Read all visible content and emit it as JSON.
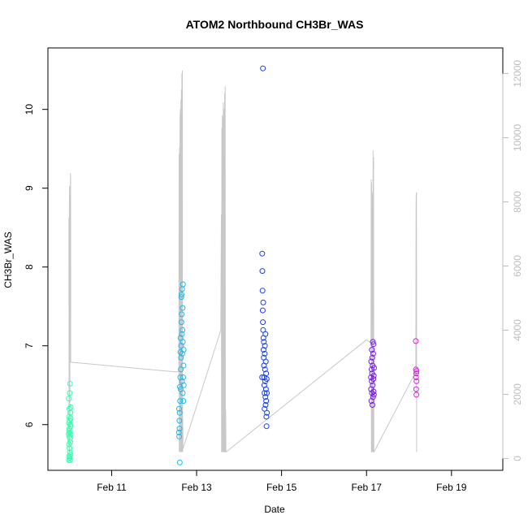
{
  "chart_data": {
    "type": "scatter",
    "title": "ATOM2 Northbound CH3Br_WAS",
    "xlabel": "Date",
    "ylabel": "CH3Br_WAS",
    "xlim": [
      "2016-02-09T12:00",
      "2016-02-20T05:00"
    ],
    "ylim": [
      5.42,
      10.78
    ],
    "y2lim": [
      -370,
      12800
    ],
    "x_ticks": [
      {
        "t": "2016-02-11T00:00",
        "label": "Feb 11"
      },
      {
        "t": "2016-02-13T00:00",
        "label": "Feb 13"
      },
      {
        "t": "2016-02-15T00:00",
        "label": "Feb 15"
      },
      {
        "t": "2016-02-17T00:00",
        "label": "Feb 17"
      },
      {
        "t": "2016-02-19T00:00",
        "label": "Feb 19"
      }
    ],
    "y_ticks": [
      6,
      7,
      8,
      9,
      10
    ],
    "y2_ticks": [
      0,
      2000,
      4000,
      6000,
      8000,
      10000,
      12000
    ],
    "secondary_line": {
      "color": "#c8c8c8",
      "points": [
        [
          "2016-02-09T23:50",
          7500
        ],
        [
          "2016-02-09T23:58",
          200
        ],
        [
          "2016-02-10T00:05",
          7500
        ],
        [
          "2016-02-10T00:12",
          8500
        ],
        [
          "2016-02-10T00:20",
          200
        ],
        [
          "2016-02-10T00:28",
          8000
        ],
        [
          "2016-02-10T00:34",
          8200
        ],
        [
          "2016-02-10T00:40",
          7000
        ],
        [
          "2016-02-10T00:46",
          8900
        ],
        [
          "2016-02-10T00:52",
          8700
        ],
        [
          "2016-02-10T00:55",
          3000
        ],
        [
          "2016-02-12T12:00",
          2700
        ],
        [
          "2016-02-12T14:00",
          2700
        ],
        [
          "2016-02-12T14:06",
          9500
        ],
        [
          "2016-02-12T14:12",
          200
        ],
        [
          "2016-02-12T14:20",
          9700
        ],
        [
          "2016-02-12T14:28",
          200
        ],
        [
          "2016-02-12T14:36",
          10600
        ],
        [
          "2016-02-12T14:44",
          10700
        ],
        [
          "2016-02-12T14:52",
          10900
        ],
        [
          "2016-02-12T15:00",
          200
        ],
        [
          "2016-02-12T15:08",
          11200
        ],
        [
          "2016-02-12T15:16",
          200
        ],
        [
          "2016-02-12T15:24",
          11500
        ],
        [
          "2016-02-12T15:32",
          200
        ],
        [
          "2016-02-12T15:40",
          12000
        ],
        [
          "2016-02-12T15:48",
          200
        ],
        [
          "2016-02-12T15:56",
          12100
        ],
        [
          "2016-02-12T16:05",
          200
        ],
        [
          "2016-02-12T16:12",
          1200
        ],
        [
          "2016-02-12T16:20",
          300
        ],
        [
          "2016-02-13T13:40",
          4000
        ],
        [
          "2016-02-13T14:00",
          7600
        ],
        [
          "2016-02-13T14:08",
          200
        ],
        [
          "2016-02-13T14:16",
          10300
        ],
        [
          "2016-02-13T14:24",
          200
        ],
        [
          "2016-02-13T14:32",
          10700
        ],
        [
          "2016-02-13T14:40",
          200
        ],
        [
          "2016-02-13T14:48",
          10600
        ],
        [
          "2016-02-13T14:56",
          200
        ],
        [
          "2016-02-13T15:04",
          11100
        ],
        [
          "2016-02-13T15:12",
          200
        ],
        [
          "2016-02-13T15:20",
          10800
        ],
        [
          "2016-02-13T15:28",
          200
        ],
        [
          "2016-02-13T15:36",
          10900
        ],
        [
          "2016-02-13T15:44",
          200
        ],
        [
          "2016-02-13T15:52",
          11400
        ],
        [
          "2016-02-13T16:00",
          200
        ],
        [
          "2016-02-13T16:08",
          11600
        ],
        [
          "2016-02-13T16:16",
          200
        ],
        [
          "2016-02-13T16:24",
          1500
        ],
        [
          "2016-02-13T16:36",
          200
        ],
        [
          "2016-02-17T00:00",
          3700
        ],
        [
          "2016-02-17T02:30",
          3600
        ],
        [
          "2016-02-17T02:38",
          8700
        ],
        [
          "2016-02-17T02:46",
          200
        ],
        [
          "2016-02-17T02:54",
          8600
        ],
        [
          "2016-02-17T03:02",
          200
        ],
        [
          "2016-02-17T03:10",
          8300
        ],
        [
          "2016-02-17T03:18",
          200
        ],
        [
          "2016-02-17T03:26",
          8200
        ],
        [
          "2016-02-17T03:34",
          200
        ],
        [
          "2016-02-17T03:42",
          9600
        ],
        [
          "2016-02-17T03:50",
          200
        ],
        [
          "2016-02-17T03:58",
          9400
        ],
        [
          "2016-02-17T04:06",
          200
        ],
        [
          "2016-02-17T04:10",
          200
        ],
        [
          "2016-02-18T03:50",
          2700
        ],
        [
          "2016-02-18T04:00",
          7800
        ],
        [
          "2016-02-18T04:06",
          8200
        ],
        [
          "2016-02-18T04:12",
          8300
        ],
        [
          "2016-02-18T04:18",
          200
        ]
      ]
    },
    "series": [
      {
        "color": "#33ffb0",
        "points": [
          [
            "2016-02-09T23:45",
            5.88
          ],
          [
            "2016-02-09T23:48",
            6.33
          ],
          [
            "2016-02-09T23:50",
            5.55
          ],
          [
            "2016-02-09T23:52",
            6.02
          ],
          [
            "2016-02-09T23:55",
            5.75
          ],
          [
            "2016-02-09T23:58",
            5.92
          ],
          [
            "2016-02-10T00:00",
            6.1
          ],
          [
            "2016-02-10T00:02",
            5.6
          ],
          [
            "2016-02-10T00:05",
            5.85
          ],
          [
            "2016-02-10T00:07",
            6.2
          ],
          [
            "2016-02-10T00:10",
            5.95
          ],
          [
            "2016-02-10T00:12",
            5.7
          ],
          [
            "2016-02-10T00:15",
            6.05
          ],
          [
            "2016-02-10T00:18",
            5.58
          ],
          [
            "2016-02-10T00:20",
            5.9
          ],
          [
            "2016-02-10T00:22",
            6.4
          ],
          [
            "2016-02-10T00:25",
            5.65
          ],
          [
            "2016-02-10T00:28",
            5.82
          ],
          [
            "2016-02-10T00:30",
            6.52
          ],
          [
            "2016-02-10T00:33",
            5.55
          ],
          [
            "2016-02-10T00:36",
            6.0
          ],
          [
            "2016-02-10T00:38",
            5.78
          ],
          [
            "2016-02-10T00:40",
            6.15
          ],
          [
            "2016-02-10T00:43",
            5.62
          ],
          [
            "2016-02-10T00:46",
            6.08
          ],
          [
            "2016-02-10T00:48",
            5.88
          ],
          [
            "2016-02-10T00:50",
            6.22
          ],
          [
            "2016-02-10T00:52",
            5.98
          ]
        ]
      },
      {
        "color": "#22b8e8",
        "points": [
          [
            "2016-02-12T14:00",
            5.9
          ],
          [
            "2016-02-12T14:05",
            6.2
          ],
          [
            "2016-02-12T14:10",
            5.85
          ],
          [
            "2016-02-12T14:15",
            6.05
          ],
          [
            "2016-02-12T14:20",
            5.95
          ],
          [
            "2016-02-12T14:25",
            6.15
          ],
          [
            "2016-02-12T14:30",
            5.52
          ],
          [
            "2016-02-12T14:35",
            6.48
          ],
          [
            "2016-02-12T14:40",
            6.3
          ],
          [
            "2016-02-12T14:45",
            6.6
          ],
          [
            "2016-02-12T14:50",
            6.92
          ],
          [
            "2016-02-12T14:55",
            7.1
          ],
          [
            "2016-02-12T15:00",
            6.45
          ],
          [
            "2016-02-12T15:05",
            6.7
          ],
          [
            "2016-02-12T15:10",
            6.85
          ],
          [
            "2016-02-12T15:15",
            7.0
          ],
          [
            "2016-02-12T15:20",
            7.62
          ],
          [
            "2016-02-12T15:25",
            7.3
          ],
          [
            "2016-02-12T15:30",
            7.65
          ],
          [
            "2016-02-12T15:35",
            7.4
          ],
          [
            "2016-02-12T15:40",
            7.15
          ],
          [
            "2016-02-12T15:45",
            6.55
          ],
          [
            "2016-02-12T15:50",
            7.72
          ],
          [
            "2016-02-12T15:55",
            6.9
          ],
          [
            "2016-02-12T16:00",
            7.2
          ],
          [
            "2016-02-12T16:05",
            7.48
          ],
          [
            "2016-02-12T16:10",
            6.4
          ],
          [
            "2016-02-12T16:15",
            7.05
          ],
          [
            "2016-02-12T16:20",
            7.78
          ],
          [
            "2016-02-12T16:25",
            6.6
          ],
          [
            "2016-02-12T16:30",
            6.3
          ],
          [
            "2016-02-12T16:35",
            6.75
          ],
          [
            "2016-02-12T16:40",
            6.95
          ],
          [
            "2016-02-12T16:45",
            6.5
          ]
        ]
      },
      {
        "color": "#1a40f0",
        "points": [
          [
            "2016-02-14T13:00",
            6.6
          ],
          [
            "2016-02-14T13:05",
            8.17
          ],
          [
            "2016-02-14T13:10",
            7.95
          ],
          [
            "2016-02-14T13:15",
            7.7
          ],
          [
            "2016-02-14T13:20",
            7.45
          ],
          [
            "2016-02-14T13:25",
            7.3
          ],
          [
            "2016-02-14T13:30",
            10.52
          ],
          [
            "2016-02-14T13:35",
            7.2
          ],
          [
            "2016-02-14T13:40",
            7.55
          ],
          [
            "2016-02-14T13:45",
            7.1
          ],
          [
            "2016-02-14T13:50",
            6.95
          ],
          [
            "2016-02-14T13:55",
            6.85
          ],
          [
            "2016-02-14T14:00",
            7.05
          ],
          [
            "2016-02-14T14:05",
            6.75
          ],
          [
            "2016-02-14T14:10",
            6.6
          ],
          [
            "2016-02-14T14:15",
            6.5
          ],
          [
            "2016-02-14T14:20",
            6.4
          ],
          [
            "2016-02-14T14:25",
            6.2
          ],
          [
            "2016-02-14T14:30",
            6.9
          ],
          [
            "2016-02-14T14:35",
            7.0
          ],
          [
            "2016-02-14T14:40",
            6.7
          ],
          [
            "2016-02-14T14:45",
            6.55
          ],
          [
            "2016-02-14T14:50",
            6.35
          ],
          [
            "2016-02-14T14:55",
            7.15
          ],
          [
            "2016-02-14T15:00",
            6.25
          ],
          [
            "2016-02-14T15:05",
            6.8
          ],
          [
            "2016-02-14T15:10",
            6.45
          ],
          [
            "2016-02-14T15:15",
            6.65
          ],
          [
            "2016-02-14T15:20",
            6.3
          ],
          [
            "2016-02-14T15:25",
            6.1
          ],
          [
            "2016-02-14T15:30",
            5.98
          ],
          [
            "2016-02-14T15:35",
            6.58
          ],
          [
            "2016-02-14T15:40",
            6.4
          ],
          [
            "2016-02-14T15:45",
            6.15
          ]
        ]
      },
      {
        "color": "#7a1cf0",
        "points": [
          [
            "2016-02-17T02:30",
            6.6
          ],
          [
            "2016-02-17T02:35",
            6.45
          ],
          [
            "2016-02-17T02:40",
            6.8
          ],
          [
            "2016-02-17T02:45",
            6.3
          ],
          [
            "2016-02-17T02:50",
            6.7
          ],
          [
            "2016-02-17T02:55",
            6.55
          ],
          [
            "2016-02-17T03:00",
            6.95
          ],
          [
            "2016-02-17T03:05",
            6.4
          ],
          [
            "2016-02-17T03:10",
            6.65
          ],
          [
            "2016-02-17T03:15",
            6.85
          ],
          [
            "2016-02-17T03:20",
            6.25
          ],
          [
            "2016-02-17T03:25",
            6.75
          ],
          [
            "2016-02-17T03:30",
            6.5
          ],
          [
            "2016-02-17T03:35",
            7.05
          ],
          [
            "2016-02-17T03:40",
            6.35
          ],
          [
            "2016-02-17T03:45",
            6.9
          ],
          [
            "2016-02-17T03:50",
            6.58
          ],
          [
            "2016-02-17T03:55",
            7.02
          ],
          [
            "2016-02-17T04:00",
            6.42
          ],
          [
            "2016-02-17T04:05",
            6.62
          ],
          [
            "2016-02-17T04:10",
            6.38
          ],
          [
            "2016-02-17T04:15",
            6.72
          ]
        ]
      },
      {
        "color": "#e020e0",
        "points": [
          [
            "2016-02-18T03:50",
            7.06
          ],
          [
            "2016-02-18T03:55",
            6.7
          ],
          [
            "2016-02-18T04:00",
            6.6
          ],
          [
            "2016-02-18T04:03",
            6.45
          ],
          [
            "2016-02-18T04:06",
            6.65
          ],
          [
            "2016-02-18T04:09",
            6.38
          ],
          [
            "2016-02-18T04:12",
            6.55
          ],
          [
            "2016-02-18T04:15",
            6.68
          ]
        ]
      }
    ]
  }
}
